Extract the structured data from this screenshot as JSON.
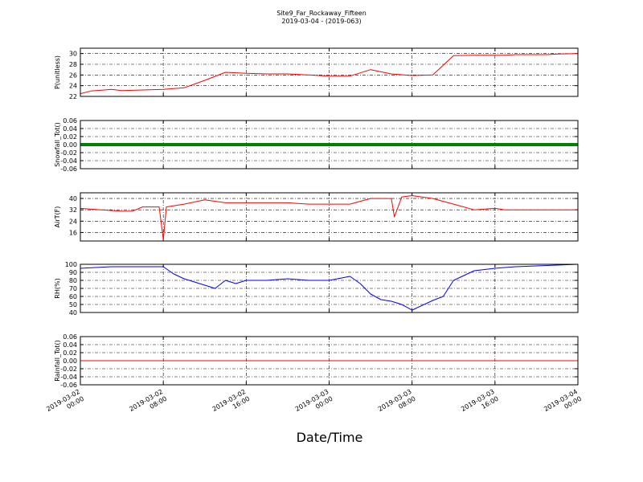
{
  "figure": {
    "title": "Site9_Far_Rockaway_Fifteen",
    "subtitle": "2019-03-04 - (2019-063)",
    "xlabel": "Date/Time"
  },
  "chart_data": [
    {
      "type": "line",
      "ylabel": "P(unitless)",
      "color": "#ff0000",
      "ylim": [
        22,
        31
      ],
      "yticks": [
        "22",
        "24",
        "26",
        "28",
        "30"
      ],
      "ytick_values": [
        22,
        24,
        26,
        28,
        30
      ],
      "x_hours": [
        0,
        1,
        3,
        4,
        6,
        8,
        10,
        12,
        14,
        16,
        18,
        20,
        22,
        24,
        26,
        28,
        30,
        32,
        34,
        36,
        38,
        40,
        41,
        42,
        43,
        44,
        45,
        46,
        48
      ],
      "series": [
        {
          "values": [
            22.5,
            23.0,
            23.3,
            23.1,
            23.2,
            23.3,
            23.6,
            25.0,
            26.5,
            26.3,
            26.2,
            26.2,
            26.0,
            25.8,
            25.8,
            27.0,
            26.2,
            25.9,
            26.0,
            29.6,
            29.7,
            29.7,
            29.7,
            29.8,
            29.8,
            29.8,
            29.8,
            29.9,
            30.0
          ]
        }
      ]
    },
    {
      "type": "scatter",
      "ylabel": "Snowfall_Tot()",
      "color": "#008000",
      "ylim": [
        -0.06,
        0.06
      ],
      "yticks": [
        "-0.06",
        "-0.04",
        "-0.02",
        "0.00",
        "0.02",
        "0.04",
        "0.06"
      ],
      "ytick_values": [
        -0.06,
        -0.04,
        -0.02,
        0,
        0.02,
        0.04,
        0.06
      ],
      "x_hours": [
        0,
        48
      ],
      "series": [
        {
          "values": [
            0,
            0
          ]
        }
      ]
    },
    {
      "type": "line",
      "ylabel": "AirT(F)",
      "color": "#ff0000",
      "ylim": [
        10,
        44
      ],
      "yticks": [
        "16",
        "24",
        "32",
        "40"
      ],
      "ytick_values": [
        16,
        24,
        32,
        40
      ],
      "x_hours": [
        0,
        2,
        4,
        5,
        6,
        7.6,
        8,
        8.3,
        10,
        12,
        14,
        16,
        18,
        20,
        22,
        24,
        26,
        28,
        30,
        30.3,
        31,
        32,
        34,
        36,
        38,
        40,
        41,
        42,
        44,
        46,
        48
      ],
      "series": [
        {
          "values": [
            33,
            32,
            31,
            31,
            34,
            34,
            11,
            34,
            36,
            39,
            37,
            37,
            37,
            37,
            36,
            36,
            36,
            40,
            40,
            27,
            41,
            42,
            40,
            36,
            32,
            33,
            32,
            32,
            32,
            32,
            32
          ]
        }
      ]
    },
    {
      "type": "line",
      "ylabel": "RH(%)",
      "color": "#0000ff",
      "ylim": [
        40,
        100
      ],
      "yticks": [
        "40",
        "50",
        "60",
        "70",
        "80",
        "90",
        "100"
      ],
      "ytick_values": [
        40,
        50,
        60,
        70,
        80,
        90,
        100
      ],
      "x_hours": [
        0,
        3,
        8,
        9,
        10,
        12,
        13,
        14,
        15,
        16,
        18,
        20,
        22,
        24,
        26,
        27,
        28,
        29,
        30,
        31,
        32,
        34,
        35,
        36,
        38,
        40,
        42,
        44,
        46,
        48
      ],
      "series": [
        {
          "values": [
            95,
            97,
            97,
            88,
            82,
            74,
            70,
            80,
            76,
            80,
            80,
            82,
            80,
            80,
            85,
            76,
            63,
            56,
            54,
            50,
            43,
            55,
            60,
            80,
            92,
            95,
            97,
            98,
            99,
            100
          ]
        }
      ]
    },
    {
      "type": "line",
      "ylabel": "Rainfall_Tot()",
      "color": "#ff0000",
      "ylim": [
        -0.06,
        0.06
      ],
      "yticks": [
        "-0.06",
        "-0.04",
        "-0.02",
        "0.00",
        "0.02",
        "0.04",
        "0.06"
      ],
      "ytick_values": [
        -0.06,
        -0.04,
        -0.02,
        0,
        0.02,
        0.04,
        0.06
      ],
      "x_hours": [
        0,
        48
      ],
      "series": [
        {
          "values": [
            0,
            0
          ]
        }
      ]
    }
  ],
  "xaxis": {
    "x_start": "2019-03-02 00:00",
    "xlim_hours": [
      0,
      48
    ],
    "tick_hours": [
      0,
      8,
      16,
      24,
      32,
      40,
      48
    ],
    "tick_labels": [
      [
        "2019-03-02",
        "00:00"
      ],
      [
        "2019-03-02",
        "08:00"
      ],
      [
        "2019-03-02",
        "16:00"
      ],
      [
        "2019-03-03",
        "00:00"
      ],
      [
        "2019-03-03",
        "08:00"
      ],
      [
        "2019-03-03",
        "16:00"
      ],
      [
        "2019-03-04",
        "00:00"
      ]
    ]
  }
}
